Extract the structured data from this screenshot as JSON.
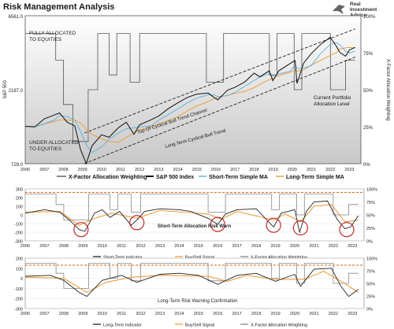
{
  "header": {
    "title": "Risk Management Analysis"
  },
  "logo": {
    "line1": "Real",
    "line2": "Investment",
    "line3": "Advice"
  },
  "chart_data": [
    {
      "type": "line",
      "years": [
        "2006",
        "2007",
        "2008",
        "2009",
        "2010",
        "2011",
        "2012",
        "2013",
        "2014",
        "2015",
        "2016",
        "2017",
        "2018",
        "2019",
        "2020",
        "2021",
        "2022",
        "2023"
      ],
      "y_left_ticks": [
        "729.0",
        "2187.0",
        "6561.0"
      ],
      "y_right_ticks": [
        "0%",
        "25%",
        "50%",
        "75%",
        "100%"
      ],
      "ylabel_left": "S&P 500",
      "ylabel_right": "X-Factor Allocation Weighting",
      "annotations": {
        "fully": [
          "FULLY ALLOCATED",
          "TO EQUITIES"
        ],
        "under": [
          "UNDER ALLOCATED",
          "TO EQUITIES"
        ],
        "top_channel": "Top Of Cyclical Bull Trend Channel",
        "long_term": "Long Term Cyclical Bull Trend",
        "current": [
          "Current Portfolio",
          "Allocation Level"
        ]
      },
      "legend": [
        "X-Factor Allocation Weighting",
        "S&P 500 Index",
        "Short-Term Simple MA",
        "Long-Term Simple MA"
      ],
      "sp500": [
        [
          2006,
          1270
        ],
        [
          2006.5,
          1260
        ],
        [
          2007,
          1420
        ],
        [
          2007.5,
          1500
        ],
        [
          2007.8,
          1550
        ],
        [
          2008.2,
          1350
        ],
        [
          2008.6,
          1280
        ],
        [
          2008.9,
          900
        ],
        [
          2009.2,
          730
        ],
        [
          2009.5,
          950
        ],
        [
          2010,
          1120
        ],
        [
          2010.4,
          1080
        ],
        [
          2010.9,
          1250
        ],
        [
          2011.3,
          1350
        ],
        [
          2011.7,
          1130
        ],
        [
          2012,
          1300
        ],
        [
          2012.6,
          1400
        ],
        [
          2013,
          1480
        ],
        [
          2013.5,
          1650
        ],
        [
          2014,
          1800
        ],
        [
          2014.5,
          1950
        ],
        [
          2015,
          2050
        ],
        [
          2015.6,
          2080
        ],
        [
          2015.9,
          1950
        ],
        [
          2016.1,
          1880
        ],
        [
          2016.6,
          2170
        ],
        [
          2017,
          2270
        ],
        [
          2017.5,
          2450
        ],
        [
          2018,
          2800
        ],
        [
          2018.3,
          2650
        ],
        [
          2018.8,
          2900
        ],
        [
          2018.98,
          2500
        ],
        [
          2019.3,
          2900
        ],
        [
          2019.9,
          3230
        ],
        [
          2020.15,
          3380
        ],
        [
          2020.25,
          2400
        ],
        [
          2020.6,
          3250
        ],
        [
          2021,
          3750
        ],
        [
          2021.5,
          4300
        ],
        [
          2021.99,
          4770
        ],
        [
          2022.3,
          4200
        ],
        [
          2022.5,
          3800
        ],
        [
          2022.8,
          3600
        ],
        [
          2023,
          3950
        ],
        [
          2023.3,
          4100
        ]
      ],
      "xfactor": [
        [
          2006,
          0.88
        ],
        [
          2007.6,
          0.88
        ],
        [
          2007.6,
          0.7
        ],
        [
          2008,
          0.7
        ],
        [
          2008,
          0.4
        ],
        [
          2008.5,
          0.4
        ],
        [
          2008.5,
          0.15
        ],
        [
          2009.3,
          0.15
        ],
        [
          2009.3,
          0.5
        ],
        [
          2009.8,
          0.5
        ],
        [
          2009.8,
          0.88
        ],
        [
          2010.4,
          0.88
        ],
        [
          2010.4,
          0.6
        ],
        [
          2010.8,
          0.6
        ],
        [
          2010.8,
          0.88
        ],
        [
          2011.5,
          0.88
        ],
        [
          2011.5,
          0.55
        ],
        [
          2012,
          0.55
        ],
        [
          2012,
          0.88
        ],
        [
          2015.5,
          0.88
        ],
        [
          2015.5,
          0.55
        ],
        [
          2016.4,
          0.55
        ],
        [
          2016.4,
          0.88
        ],
        [
          2018.8,
          0.88
        ],
        [
          2018.8,
          0.6
        ],
        [
          2019.2,
          0.6
        ],
        [
          2019.2,
          0.88
        ],
        [
          2020.1,
          0.88
        ],
        [
          2020.1,
          0.5
        ],
        [
          2020.5,
          0.5
        ],
        [
          2020.5,
          0.88
        ],
        [
          2022,
          0.88
        ],
        [
          2022,
          0.5
        ],
        [
          2022.8,
          0.5
        ],
        [
          2022.8,
          0.7
        ],
        [
          2023.3,
          0.7
        ]
      ],
      "channel_top": [
        [
          2009.1,
          1150
        ],
        [
          2023.3,
          5400
        ]
      ],
      "channel_bottom": [
        [
          2009.1,
          730
        ],
        [
          2023.3,
          3550
        ]
      ]
    },
    {
      "type": "line",
      "years": [
        "2006",
        "2007",
        "2008",
        "2009",
        "2010",
        "2011",
        "2012",
        "2013",
        "2014",
        "2015",
        "2016",
        "2017",
        "2018",
        "2019",
        "2020",
        "2021",
        "2022",
        "2023"
      ],
      "y_left_ticks": [
        "300",
        "200",
        "100",
        "0",
        "-100",
        "-200",
        "-300"
      ],
      "y_right_ticks": [
        "100%",
        "75%",
        "50%",
        "25%",
        "0%"
      ],
      "annotation": "Short-Term Allocation Risk Warn",
      "legend": [
        "Short-Term Indicator",
        "Buy/Sell Signal",
        "X-Factor Allocation Weighting"
      ],
      "indicator": [
        [
          2006,
          20
        ],
        [
          2007,
          60
        ],
        [
          2007.8,
          30
        ],
        [
          2008.3,
          -60
        ],
        [
          2008.8,
          -170
        ],
        [
          2009.1,
          -190
        ],
        [
          2009.6,
          20
        ],
        [
          2010,
          60
        ],
        [
          2010.4,
          -30
        ],
        [
          2010.9,
          40
        ],
        [
          2011.5,
          -120
        ],
        [
          2011.8,
          -60
        ],
        [
          2012.2,
          40
        ],
        [
          2013,
          70
        ],
        [
          2014,
          60
        ],
        [
          2014.6,
          40
        ],
        [
          2015.5,
          -40
        ],
        [
          2016,
          -110
        ],
        [
          2016.4,
          10
        ],
        [
          2017,
          60
        ],
        [
          2018,
          70
        ],
        [
          2018.9,
          -140
        ],
        [
          2019.3,
          20
        ],
        [
          2020,
          60
        ],
        [
          2020.25,
          -200
        ],
        [
          2020.6,
          40
        ],
        [
          2021,
          150
        ],
        [
          2021.7,
          160
        ],
        [
          2022.2,
          -50
        ],
        [
          2022.6,
          -160
        ],
        [
          2022.9,
          -140
        ],
        [
          2023.3,
          -10
        ]
      ],
      "signal": [
        [
          2006,
          30
        ],
        [
          2007.8,
          40
        ],
        [
          2008.8,
          -120
        ],
        [
          2009.6,
          -40
        ],
        [
          2010.5,
          20
        ],
        [
          2011.8,
          -40
        ],
        [
          2013,
          50
        ],
        [
          2015.5,
          10
        ],
        [
          2016.2,
          -50
        ],
        [
          2017,
          40
        ],
        [
          2018.9,
          -60
        ],
        [
          2019.5,
          10
        ],
        [
          2020.3,
          -80
        ],
        [
          2021,
          100
        ],
        [
          2021.9,
          120
        ],
        [
          2022.6,
          -80
        ],
        [
          2023.3,
          -60
        ]
      ],
      "xfactor": [
        [
          2006,
          0.9
        ],
        [
          2007.6,
          0.9
        ],
        [
          2007.6,
          0.7
        ],
        [
          2008,
          0.7
        ],
        [
          2008,
          0.4
        ],
        [
          2009.3,
          0.4
        ],
        [
          2009.3,
          0.9
        ],
        [
          2010.4,
          0.9
        ],
        [
          2010.4,
          0.6
        ],
        [
          2010.8,
          0.6
        ],
        [
          2010.8,
          0.9
        ],
        [
          2011.5,
          0.9
        ],
        [
          2011.5,
          0.55
        ],
        [
          2012,
          0.55
        ],
        [
          2012,
          0.9
        ],
        [
          2015.5,
          0.9
        ],
        [
          2015.5,
          0.55
        ],
        [
          2016.4,
          0.55
        ],
        [
          2016.4,
          0.9
        ],
        [
          2018.8,
          0.9
        ],
        [
          2018.8,
          0.6
        ],
        [
          2019.2,
          0.6
        ],
        [
          2019.2,
          0.9
        ],
        [
          2020.1,
          0.9
        ],
        [
          2020.1,
          0.5
        ],
        [
          2020.5,
          0.5
        ],
        [
          2020.5,
          0.9
        ],
        [
          2022,
          0.9
        ],
        [
          2022,
          0.5
        ],
        [
          2022.8,
          0.5
        ],
        [
          2022.8,
          0.7
        ],
        [
          2023.3,
          0.7
        ]
      ],
      "warning_level": 260,
      "circles": [
        [
          2008.9,
          -170
        ],
        [
          2011.8,
          -90
        ],
        [
          2016,
          -110
        ],
        [
          2018.9,
          -120
        ],
        [
          2020.3,
          -150
        ],
        [
          2022.7,
          -170
        ]
      ]
    },
    {
      "type": "line",
      "years": [
        "2006",
        "2007",
        "2008",
        "2009",
        "2010",
        "2011",
        "2012",
        "2013",
        "2014",
        "2015",
        "2016",
        "2017",
        "2018",
        "2019",
        "2020",
        "2021",
        "2022",
        "2023"
      ],
      "y_left_ticks": [
        "200",
        "100",
        "0",
        "-100",
        "-200",
        "-300"
      ],
      "y_right_ticks": [
        "100%",
        "75%",
        "50%",
        "25%",
        "0%"
      ],
      "annotation": "Long-Term Risk Warning Confirmation",
      "legend": [
        "Long-Term Indicator",
        "Buy/Sell Signal",
        "X-Factor Allocation Weighting"
      ],
      "indicator": [
        [
          2006,
          20
        ],
        [
          2007.3,
          30
        ],
        [
          2008,
          -20
        ],
        [
          2008.8,
          -140
        ],
        [
          2009.2,
          -180
        ],
        [
          2010,
          -20
        ],
        [
          2011,
          30
        ],
        [
          2011.8,
          -40
        ],
        [
          2013,
          40
        ],
        [
          2014,
          50
        ],
        [
          2015,
          30
        ],
        [
          2016,
          -60
        ],
        [
          2017,
          30
        ],
        [
          2018,
          50
        ],
        [
          2019,
          -30
        ],
        [
          2020,
          40
        ],
        [
          2020.3,
          -80
        ],
        [
          2021,
          90
        ],
        [
          2021.9,
          100
        ],
        [
          2022.4,
          -80
        ],
        [
          2022.8,
          -180
        ],
        [
          2023.3,
          -110
        ]
      ],
      "signal": [
        [
          2006,
          10
        ],
        [
          2008,
          0
        ],
        [
          2009.2,
          -140
        ],
        [
          2010.2,
          -40
        ],
        [
          2011.5,
          10
        ],
        [
          2013,
          30
        ],
        [
          2015.5,
          20
        ],
        [
          2016.5,
          -30
        ],
        [
          2017.5,
          30
        ],
        [
          2019,
          -10
        ],
        [
          2020.5,
          -10
        ],
        [
          2021.5,
          70
        ],
        [
          2022.5,
          -40
        ],
        [
          2023.3,
          -140
        ]
      ],
      "xfactor": [
        [
          2006,
          0.9
        ],
        [
          2007.6,
          0.9
        ],
        [
          2007.6,
          0.7
        ],
        [
          2008,
          0.7
        ],
        [
          2008,
          0.4
        ],
        [
          2009.3,
          0.4
        ],
        [
          2009.3,
          0.9
        ],
        [
          2010.4,
          0.9
        ],
        [
          2010.4,
          0.6
        ],
        [
          2010.8,
          0.6
        ],
        [
          2010.8,
          0.9
        ],
        [
          2011.5,
          0.9
        ],
        [
          2011.5,
          0.55
        ],
        [
          2012,
          0.55
        ],
        [
          2012,
          0.9
        ],
        [
          2015.5,
          0.9
        ],
        [
          2015.5,
          0.55
        ],
        [
          2016.4,
          0.55
        ],
        [
          2016.4,
          0.9
        ],
        [
          2018.8,
          0.9
        ],
        [
          2018.8,
          0.6
        ],
        [
          2019.2,
          0.6
        ],
        [
          2019.2,
          0.9
        ],
        [
          2020.1,
          0.9
        ],
        [
          2020.1,
          0.5
        ],
        [
          2020.5,
          0.5
        ],
        [
          2020.5,
          0.9
        ],
        [
          2022,
          0.9
        ],
        [
          2022,
          0.5
        ],
        [
          2022.8,
          0.5
        ],
        [
          2022.8,
          0.7
        ],
        [
          2023.3,
          0.7
        ]
      ],
      "warning_level": 130
    }
  ],
  "colors": {
    "sp500": "#111111",
    "short_ma": "#5ab0d8",
    "long_ma": "#e8a040",
    "xfactor": "#555555",
    "warn": "#e07020",
    "circle": "#c0282c",
    "signal": "#e8a040"
  }
}
